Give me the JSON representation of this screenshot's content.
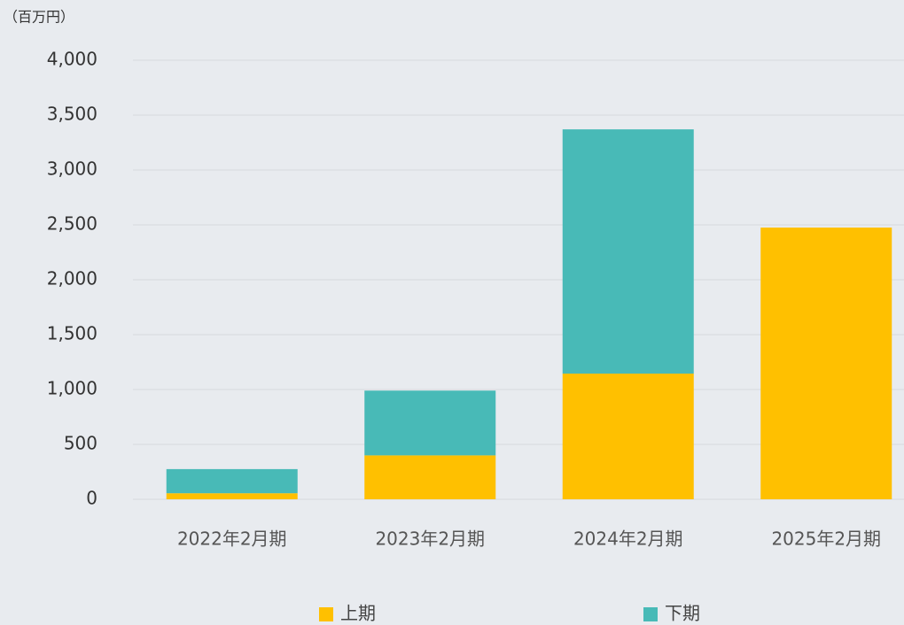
{
  "chart_data": {
    "type": "stacked_bar",
    "unit_label": "（百万円）",
    "categories": [
      "2022年2月期",
      "2023年2月期",
      "2024年2月期",
      "2025年2月期"
    ],
    "series": [
      {
        "name": "上期",
        "color": "#ffc000",
        "values": [
          55,
          400,
          1145,
          2475
        ]
      },
      {
        "name": "下期",
        "color": "#48bab7",
        "values": [
          220,
          590,
          2225,
          null
        ]
      }
    ],
    "ylim": [
      0,
      4000
    ],
    "yticks": [
      {
        "value": 0,
        "label": "0"
      },
      {
        "value": 500,
        "label": "500"
      },
      {
        "value": 1000,
        "label": "1,000"
      },
      {
        "value": 1500,
        "label": "1,500"
      },
      {
        "value": 2000,
        "label": "2,000"
      },
      {
        "value": 2500,
        "label": "2,500"
      },
      {
        "value": 3000,
        "label": "3,000"
      },
      {
        "value": 3500,
        "label": "3,500"
      },
      {
        "value": 4000,
        "label": "4,000"
      }
    ],
    "grid": true
  }
}
